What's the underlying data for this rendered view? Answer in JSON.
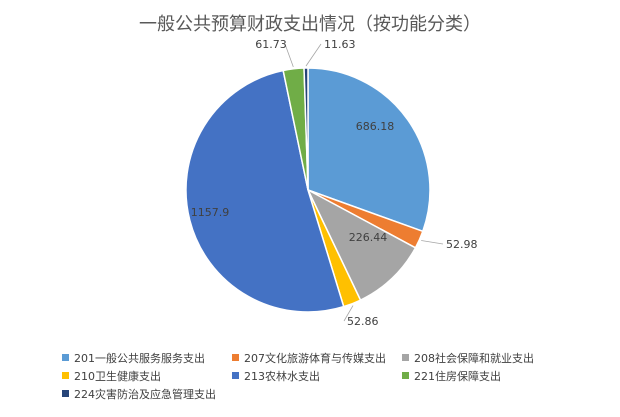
{
  "chart_data": {
    "type": "pie",
    "title": "一般公共预算财政支出情况（按功能分类）",
    "categories": [
      "201一般公共服务服务支出",
      "207文化旅游体育与传媒支出",
      "208社会保障和就业支出",
      "210卫生健康支出",
      "213农林水支出",
      "221住房保障支出",
      "224灾害防治及应急管理支出"
    ],
    "values": [
      686.18,
      52.98,
      226.44,
      52.86,
      1157.9,
      61.73,
      11.63
    ],
    "colors": [
      "#5B9BD5",
      "#ED7D31",
      "#A5A5A5",
      "#FFC000",
      "#4472C4",
      "#70AD47",
      "#264478"
    ],
    "data_labels": [
      "686.18",
      "52.98",
      "226.44",
      "52.86",
      "1157.9",
      "61.73",
      "11.63"
    ],
    "legend": "bottom"
  }
}
